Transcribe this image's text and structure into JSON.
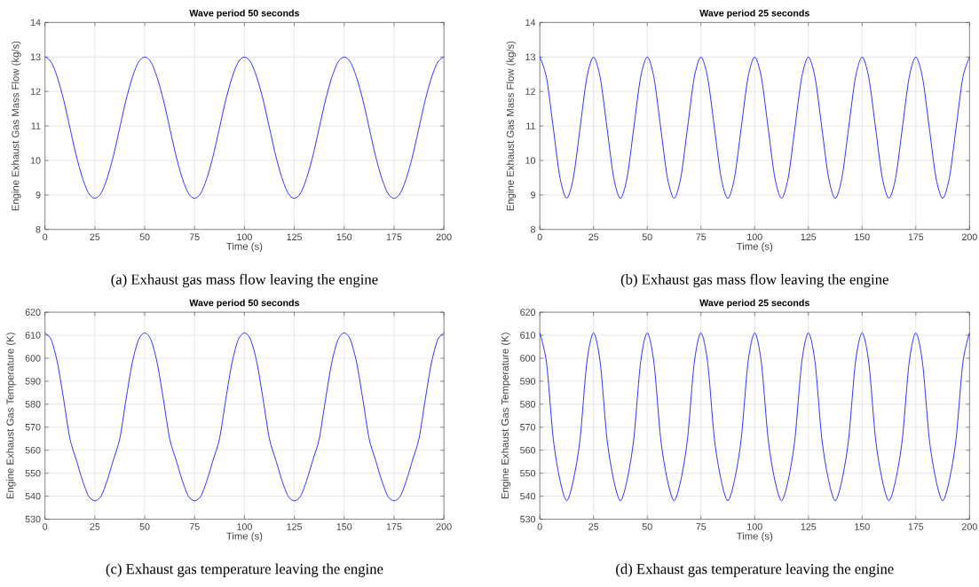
{
  "chart_data": [
    {
      "type": "line",
      "title": "Wave period 50 seconds",
      "xlabel": "Time (s)",
      "ylabel": "Engine Exhaust Gas Mass Flow (kg/s)",
      "color": "#0000ff",
      "grid": true,
      "xlim": [
        0,
        200
      ],
      "ylim": [
        8,
        14
      ],
      "xticks": [
        0,
        25,
        50,
        75,
        100,
        125,
        150,
        175,
        200
      ],
      "yticks": [
        8,
        9,
        10,
        11,
        12,
        13,
        14
      ],
      "x": [
        0,
        3.125,
        6.25,
        9.375,
        12.5,
        15.625,
        18.75,
        21.875,
        25,
        28.125,
        31.25,
        34.375,
        37.5,
        40.625,
        43.75,
        46.875,
        50,
        53.125,
        56.25,
        59.375,
        62.5,
        65.625,
        68.75,
        71.875,
        75,
        78.125,
        81.25,
        84.375,
        87.5,
        90.625,
        93.75,
        96.875,
        100,
        103.125,
        106.25,
        109.375,
        112.5,
        115.625,
        118.75,
        121.875,
        125,
        128.125,
        131.25,
        134.375,
        137.5,
        140.625,
        143.75,
        146.875,
        150,
        153.125,
        156.25,
        159.375,
        162.5,
        165.625,
        168.75,
        171.875,
        175,
        178.125,
        181.25,
        184.375,
        187.5,
        190.625,
        193.75,
        196.875,
        200
      ],
      "values": [
        13,
        12.85,
        12.4,
        11.75,
        10.95,
        10.15,
        9.5,
        9.05,
        8.9,
        9.05,
        9.5,
        10.15,
        10.95,
        11.75,
        12.4,
        12.85,
        13,
        12.85,
        12.4,
        11.75,
        10.95,
        10.15,
        9.5,
        9.05,
        8.9,
        9.05,
        9.5,
        10.15,
        10.95,
        11.75,
        12.4,
        12.85,
        13,
        12.85,
        12.4,
        11.75,
        10.95,
        10.15,
        9.5,
        9.05,
        8.9,
        9.05,
        9.5,
        10.15,
        10.95,
        11.75,
        12.4,
        12.85,
        13,
        12.85,
        12.4,
        11.75,
        10.95,
        10.15,
        9.5,
        9.05,
        8.9,
        9.05,
        9.5,
        10.15,
        10.95,
        11.75,
        12.4,
        12.85,
        13
      ],
      "annotations": [
        "(a) Exhaust gas mass flow leaving the engine"
      ]
    },
    {
      "type": "line",
      "title": "Wave period 25 seconds",
      "xlabel": "Time (s)",
      "ylabel": "Engine Exhaust Gas Mass Flow (kg/s)",
      "color": "#0000ff",
      "grid": true,
      "xlim": [
        0,
        200
      ],
      "ylim": [
        8,
        14
      ],
      "xticks": [
        0,
        25,
        50,
        75,
        100,
        125,
        150,
        175,
        200
      ],
      "yticks": [
        8,
        9,
        10,
        11,
        12,
        13,
        14
      ],
      "x": [
        0,
        3.125,
        6.25,
        9.375,
        12.5,
        15.625,
        18.75,
        21.875,
        25,
        28.125,
        31.25,
        34.375,
        37.5,
        40.625,
        43.75,
        46.875,
        50,
        53.125,
        56.25,
        59.375,
        62.5,
        65.625,
        68.75,
        71.875,
        75,
        78.125,
        81.25,
        84.375,
        87.5,
        90.625,
        93.75,
        96.875,
        100,
        103.125,
        106.25,
        109.375,
        112.5,
        115.625,
        118.75,
        121.875,
        125,
        128.125,
        131.25,
        134.375,
        137.5,
        140.625,
        143.75,
        146.875,
        150,
        153.125,
        156.25,
        159.375,
        162.5,
        165.625,
        168.75,
        171.875,
        175,
        178.125,
        181.25,
        184.375,
        187.5,
        190.625,
        193.75,
        196.875,
        200
      ],
      "values": [
        13,
        12.4,
        10.95,
        9.5,
        8.9,
        9.5,
        10.95,
        12.4,
        13,
        12.4,
        10.95,
        9.5,
        8.9,
        9.5,
        10.95,
        12.4,
        13,
        12.4,
        10.95,
        9.5,
        8.9,
        9.5,
        10.95,
        12.4,
        13,
        12.4,
        10.95,
        9.5,
        8.9,
        9.5,
        10.95,
        12.4,
        13,
        12.4,
        10.95,
        9.5,
        8.9,
        9.5,
        10.95,
        12.4,
        13,
        12.4,
        10.95,
        9.5,
        8.9,
        9.5,
        10.95,
        12.4,
        13,
        12.4,
        10.95,
        9.5,
        8.9,
        9.5,
        10.95,
        12.4,
        13,
        12.4,
        10.95,
        9.5,
        8.9,
        9.5,
        10.95,
        12.4,
        13
      ],
      "annotations": [
        "(b) Exhaust gas mass flow leaving the engine"
      ]
    },
    {
      "type": "line",
      "title": "Wave period 50 seconds",
      "xlabel": "Time (s)",
      "ylabel": "Engine Exhaust Gas Temperature (K)",
      "color": "#0000ff",
      "grid": true,
      "xlim": [
        0,
        200
      ],
      "ylim": [
        530,
        620
      ],
      "xticks": [
        0,
        25,
        50,
        75,
        100,
        125,
        150,
        175,
        200
      ],
      "yticks": [
        530,
        540,
        550,
        560,
        570,
        580,
        590,
        600,
        610,
        620
      ],
      "x": [
        0,
        3.125,
        6.25,
        9.375,
        12.5,
        15.625,
        18.75,
        21.875,
        25,
        28.125,
        31.25,
        34.375,
        37.5,
        40.625,
        43.75,
        46.875,
        50,
        53.125,
        56.25,
        59.375,
        62.5,
        65.625,
        68.75,
        71.875,
        75,
        78.125,
        81.25,
        84.375,
        87.5,
        90.625,
        93.75,
        96.875,
        100,
        103.125,
        106.25,
        109.375,
        112.5,
        115.625,
        118.75,
        121.875,
        125,
        128.125,
        131.25,
        134.375,
        137.5,
        140.625,
        143.75,
        146.875,
        150,
        153.125,
        156.25,
        159.375,
        162.5,
        165.625,
        168.75,
        171.875,
        175,
        178.125,
        181.25,
        184.375,
        187.5,
        190.625,
        193.75,
        196.875,
        200
      ],
      "values": [
        611,
        608,
        598,
        582,
        565,
        556,
        547,
        540,
        538,
        540,
        547,
        556,
        565,
        582,
        598,
        608,
        611,
        608,
        598,
        582,
        565,
        556,
        547,
        540,
        538,
        540,
        547,
        556,
        565,
        582,
        598,
        608,
        611,
        608,
        598,
        582,
        565,
        556,
        547,
        540,
        538,
        540,
        547,
        556,
        565,
        582,
        598,
        608,
        611,
        608,
        598,
        582,
        565,
        556,
        547,
        540,
        538,
        540,
        547,
        556,
        565,
        582,
        598,
        608,
        611
      ],
      "annotations": [
        "(c) Exhaust gas temperature leaving the engine"
      ]
    },
    {
      "type": "line",
      "title": "Wave period 25 seconds",
      "xlabel": "Time (s)",
      "ylabel": "Engine Exhaust Gas Temperature (K)",
      "color": "#0000ff",
      "grid": true,
      "xlim": [
        0,
        200
      ],
      "ylim": [
        530,
        620
      ],
      "xticks": [
        0,
        25,
        50,
        75,
        100,
        125,
        150,
        175,
        200
      ],
      "yticks": [
        530,
        540,
        550,
        560,
        570,
        580,
        590,
        600,
        610,
        620
      ],
      "x": [
        0,
        3.125,
        6.25,
        9.375,
        12.5,
        15.625,
        18.75,
        21.875,
        25,
        28.125,
        31.25,
        34.375,
        37.5,
        40.625,
        43.75,
        46.875,
        50,
        53.125,
        56.25,
        59.375,
        62.5,
        65.625,
        68.75,
        71.875,
        75,
        78.125,
        81.25,
        84.375,
        87.5,
        90.625,
        93.75,
        96.875,
        100,
        103.125,
        106.25,
        109.375,
        112.5,
        115.625,
        118.75,
        121.875,
        125,
        128.125,
        131.25,
        134.375,
        137.5,
        140.625,
        143.75,
        146.875,
        150,
        153.125,
        156.25,
        159.375,
        162.5,
        165.625,
        168.75,
        171.875,
        175,
        178.125,
        181.25,
        184.375,
        187.5,
        190.625,
        193.75,
        196.875,
        200
      ],
      "values": [
        611,
        598,
        565,
        547,
        538,
        547,
        565,
        598,
        611,
        598,
        565,
        547,
        538,
        547,
        565,
        598,
        611,
        598,
        565,
        547,
        538,
        547,
        565,
        598,
        611,
        598,
        565,
        547,
        538,
        547,
        565,
        598,
        611,
        598,
        565,
        547,
        538,
        547,
        565,
        598,
        611,
        598,
        565,
        547,
        538,
        547,
        565,
        598,
        611,
        598,
        565,
        547,
        538,
        547,
        565,
        598,
        611,
        598,
        565,
        547,
        538,
        547,
        565,
        598,
        611
      ],
      "annotations": [
        "(d) Exhaust gas temperature leaving the engine"
      ]
    }
  ]
}
